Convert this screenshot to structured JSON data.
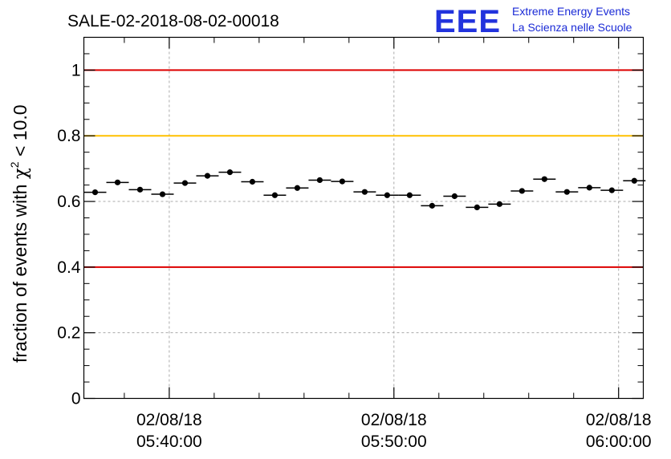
{
  "chart_data": {
    "type": "scatter",
    "title": "SALE-02-2018-08-02-00018",
    "ylabel": "fraction of events with χ² < 10.0",
    "ylabel_parts": {
      "prefix": "fraction of events with ",
      "symbol": "χ",
      "superscript": "2",
      "suffix": " < 10.0"
    },
    "xlabel": "",
    "ylim": [
      0,
      1.1
    ],
    "xlim_minutes": [
      -3.8,
      21.1
    ],
    "x_ticks": [
      {
        "minute": 0,
        "date": "02/08/18",
        "time": "05:40:00"
      },
      {
        "minute": 10,
        "date": "02/08/18",
        "time": "05:50:00"
      },
      {
        "minute": 20,
        "date": "02/08/18",
        "time": "06:00:00"
      }
    ],
    "y_ticks": [
      {
        "value": 0,
        "label": "0"
      },
      {
        "value": 0.2,
        "label": "0.2"
      },
      {
        "value": 0.4,
        "label": "0.4"
      },
      {
        "value": 0.6,
        "label": "0.6"
      },
      {
        "value": 0.8,
        "label": "0.8"
      },
      {
        "value": 1,
        "label": "1"
      }
    ],
    "grid": true,
    "reference_lines": [
      {
        "value": 1.0,
        "color": "#dd0000"
      },
      {
        "value": 0.8,
        "color": "#ffc000"
      },
      {
        "value": 0.4,
        "color": "#dd0000"
      }
    ],
    "bin_width_minutes": 1.0,
    "points_x_minutes": [
      -3.3,
      -2.3,
      -1.3,
      -0.3,
      0.7,
      1.7,
      2.7,
      3.7,
      4.7,
      5.7,
      6.7,
      7.7,
      8.7,
      9.7,
      10.7,
      11.7,
      12.7,
      13.7,
      14.7,
      15.7,
      16.7,
      17.7,
      18.7,
      19.7,
      20.7
    ],
    "points_y": [
      0.628,
      0.658,
      0.636,
      0.622,
      0.656,
      0.678,
      0.689,
      0.66,
      0.619,
      0.641,
      0.665,
      0.661,
      0.629,
      0.619,
      0.619,
      0.587,
      0.616,
      0.582,
      0.592,
      0.632,
      0.668,
      0.629,
      0.642,
      0.634,
      0.663
    ]
  },
  "logo": {
    "mark": "EEE",
    "line1": "Extreme Energy Events",
    "line2": "La Scienza nelle Scuole"
  },
  "colors": {
    "marker": "#000000",
    "grid": "#aaaaaa"
  }
}
